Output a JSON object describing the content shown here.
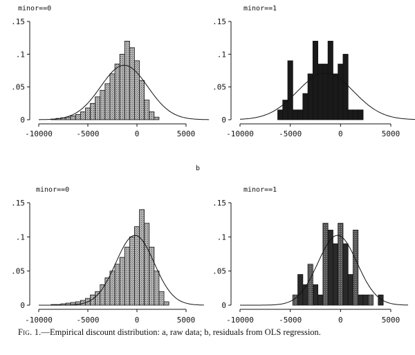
{
  "figure": {
    "section_label": "b",
    "caption_prefix": "Fig. 1.",
    "caption_text": "—Empirical discount distribution: a, raw data; b, residuals from OLS regression."
  },
  "chart_data": [
    {
      "type": "bar",
      "panel": "a",
      "title": "minor==0",
      "xlim": [
        -10000,
        5000
      ],
      "ylim": [
        0,
        0.15
      ],
      "xticks": [
        -10000,
        -5000,
        0,
        5000
      ],
      "yticks": [
        0,
        0.05,
        0.1,
        0.15
      ],
      "ytick_labels": [
        "0",
        ".05",
        ".1",
        ".15"
      ],
      "bin_width": 500,
      "x": [
        -8500,
        -8000,
        -7500,
        -7000,
        -6500,
        -6000,
        -5500,
        -5000,
        -4500,
        -4000,
        -3500,
        -3000,
        -2500,
        -2000,
        -1500,
        -1000,
        -500,
        0,
        500,
        1000,
        1500,
        2000
      ],
      "values": [
        0.001,
        0.002,
        0.003,
        0.004,
        0.006,
        0.008,
        0.012,
        0.018,
        0.025,
        0.035,
        0.045,
        0.055,
        0.07,
        0.085,
        0.1,
        0.12,
        0.11,
        0.09,
        0.06,
        0.03,
        0.012,
        0.004
      ],
      "normal_curve": {
        "mean": -1300,
        "sd": 2400
      },
      "bar_style": "light"
    },
    {
      "type": "bar",
      "panel": "a",
      "title": "minor==1",
      "xlim": [
        -10000,
        5000
      ],
      "ylim": [
        0,
        0.15
      ],
      "xticks": [
        -10000,
        -5000,
        0,
        5000
      ],
      "yticks": [
        0,
        0.05,
        0.1,
        0.15
      ],
      "ytick_labels": [
        "0",
        ".05",
        ".1",
        ".15"
      ],
      "bin_width": 500,
      "x": [
        -6000,
        -5500,
        -5000,
        -4500,
        -4000,
        -3500,
        -3000,
        -2500,
        -2000,
        -1500,
        -1000,
        -500,
        0,
        500,
        1000,
        1500,
        2000
      ],
      "values": [
        0.015,
        0.03,
        0.09,
        0.015,
        0.015,
        0.04,
        0.07,
        0.12,
        0.085,
        0.085,
        0.12,
        0.07,
        0.085,
        0.1,
        0.015,
        0.015,
        0.015
      ],
      "normal_curve": {
        "mean": -1500,
        "sd": 2800
      },
      "bar_style": "dark"
    },
    {
      "type": "bar",
      "panel": "b",
      "title": "minor==0",
      "xlim": [
        -10000,
        5000
      ],
      "ylim": [
        0,
        0.15
      ],
      "xticks": [
        -10000,
        -5000,
        0,
        5000
      ],
      "yticks": [
        0,
        0.05,
        0.1,
        0.15
      ],
      "ytick_labels": [
        "0",
        ".05",
        ".1",
        ".15"
      ],
      "bin_width": 500,
      "x": [
        -8500,
        -8000,
        -7500,
        -7000,
        -6500,
        -6000,
        -5500,
        -5000,
        -4500,
        -4000,
        -3500,
        -3000,
        -2500,
        -2000,
        -1500,
        -1000,
        -500,
        0,
        500,
        1000,
        1500,
        2000,
        2500,
        3000
      ],
      "values": [
        0.001,
        0.001,
        0.002,
        0.003,
        0.004,
        0.005,
        0.007,
        0.01,
        0.015,
        0.02,
        0.03,
        0.04,
        0.05,
        0.06,
        0.07,
        0.085,
        0.1,
        0.115,
        0.14,
        0.12,
        0.085,
        0.05,
        0.02,
        0.005
      ],
      "normal_curve": {
        "mean": -200,
        "sd": 1950
      },
      "bar_style": "light"
    },
    {
      "type": "bar",
      "panel": "b",
      "title": "minor==1",
      "xlim": [
        -10000,
        5000
      ],
      "ylim": [
        0,
        0.15
      ],
      "xticks": [
        -10000,
        -5000,
        0,
        5000
      ],
      "yticks": [
        0,
        0.05,
        0.1,
        0.15
      ],
      "ytick_labels": [
        "0",
        ".05",
        ".1",
        ".15"
      ],
      "bin_width": 500,
      "x": [
        -4500,
        -4000,
        -3500,
        -3000,
        -2500,
        -2000,
        -1500,
        -1000,
        -500,
        0,
        500,
        1000,
        1500,
        2000,
        2500,
        3000,
        3500,
        4000
      ],
      "values": [
        0.015,
        0.045,
        0.03,
        0.06,
        0.03,
        0.015,
        0.12,
        0.11,
        0.09,
        0.12,
        0.09,
        0.045,
        0.11,
        0.015,
        0.015,
        0.015,
        0,
        0.015
      ],
      "normal_curve": {
        "mean": -300,
        "sd": 1950
      },
      "bar_style": "mixed"
    }
  ]
}
